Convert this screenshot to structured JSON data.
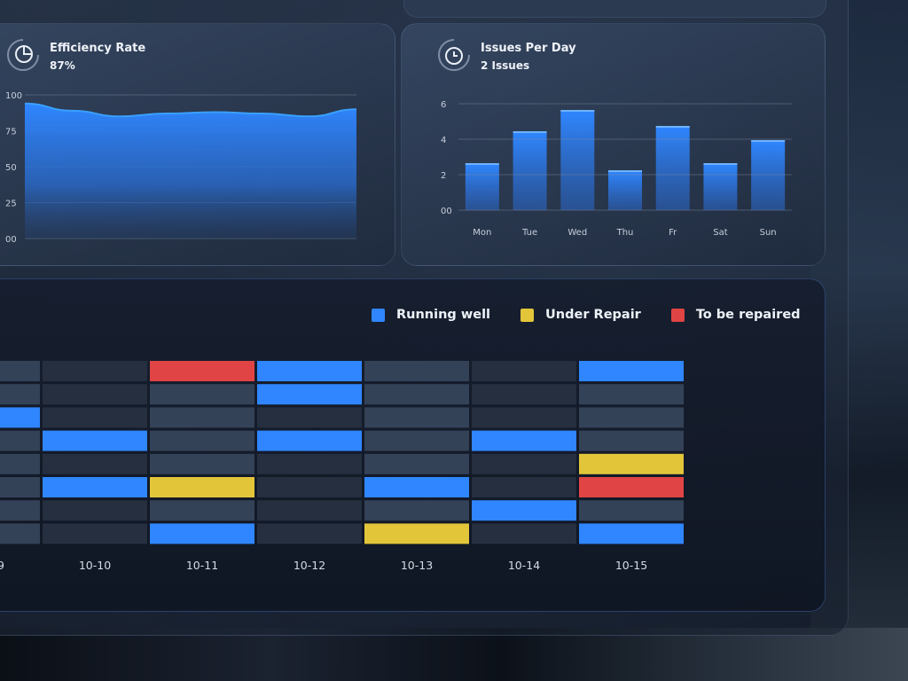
{
  "colors": {
    "running": "#2f86ff",
    "repair": "#e3c53a",
    "to_repair": "#e04444",
    "empty_light": "#344258",
    "empty_dark": "#252f40",
    "accent_line": "#3aa0ff"
  },
  "efficiency": {
    "title": "Efficiency Rate",
    "value": "87%",
    "icon": "pie-chart-icon"
  },
  "issues": {
    "title": "Issues Per Day",
    "value": "2 Issues",
    "icon": "clock-icon"
  },
  "legend": [
    {
      "label": "Running well",
      "status": "running"
    },
    {
      "label": "Under Repair",
      "status": "repair"
    },
    {
      "label": "To be repaired",
      "status": "to_repair"
    }
  ],
  "chart_data": [
    {
      "type": "area",
      "title": "Efficiency Rate",
      "ylim": [
        0,
        100
      ],
      "y_ticks": [
        "00",
        "25",
        "50",
        "75",
        "100"
      ],
      "y_tick_values": [
        0,
        25,
        50,
        75,
        100
      ],
      "x": [
        0,
        1,
        2,
        3,
        4,
        5,
        6,
        7
      ],
      "values": [
        94,
        89,
        85,
        87,
        88,
        87,
        85,
        90
      ],
      "grid": true
    },
    {
      "type": "bar",
      "title": "Issues Per Day",
      "categories": [
        "Mon",
        "Tue",
        "Wed",
        "Thu",
        "Fr",
        "Sat",
        "Sun"
      ],
      "values": [
        2.6,
        4.4,
        5.6,
        2.2,
        4.7,
        2.6,
        3.9
      ],
      "ylim": [
        0,
        6
      ],
      "y_ticks": [
        "00",
        "2",
        "4",
        "6"
      ],
      "y_tick_values": [
        0,
        2,
        4,
        6
      ],
      "grid": true
    },
    {
      "type": "heatmap",
      "columns": [
        "9",
        "10-10",
        "10-11",
        "10-12",
        "10-13",
        "10-14",
        "10-15"
      ],
      "rows": 8,
      "cells": [
        [
          "empty",
          "empty",
          "to_repair",
          "running",
          "empty",
          "empty",
          "running"
        ],
        [
          "empty",
          "empty",
          "empty",
          "running",
          "empty",
          "empty",
          "empty"
        ],
        [
          "running",
          "empty",
          "empty",
          "empty",
          "empty",
          "empty",
          "empty"
        ],
        [
          "empty",
          "running",
          "empty",
          "running",
          "empty",
          "running",
          "empty"
        ],
        [
          "empty",
          "empty",
          "empty",
          "empty",
          "empty",
          "empty",
          "repair"
        ],
        [
          "empty",
          "running",
          "repair",
          "empty",
          "running",
          "empty",
          "to_repair"
        ],
        [
          "empty",
          "empty",
          "empty",
          "empty",
          "empty",
          "running",
          "empty"
        ],
        [
          "empty",
          "empty",
          "running",
          "empty",
          "repair",
          "empty",
          "running"
        ]
      ]
    }
  ]
}
